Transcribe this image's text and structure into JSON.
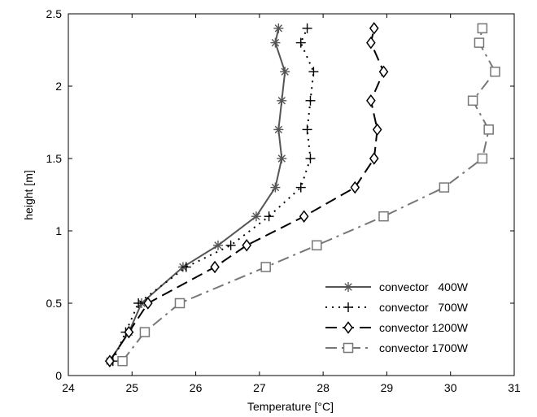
{
  "chart_data": {
    "type": "line",
    "xlabel": "Temperature [°C]",
    "ylabel": "height [m]",
    "xlim": [
      24,
      31
    ],
    "ylim": [
      0,
      2.5
    ],
    "x_ticks": [
      24,
      25,
      26,
      27,
      28,
      29,
      30,
      31
    ],
    "y_ticks": [
      0,
      0.5,
      1,
      1.5,
      2,
      2.5
    ],
    "y_tick_labels": [
      "0",
      "0.5",
      "1",
      "1.5",
      "2",
      "2.5"
    ],
    "grid": false,
    "legend_position": "bottom-right",
    "series": [
      {
        "name": "convector   400W",
        "color": "#555555",
        "line_style": "solid",
        "marker": "star",
        "points": [
          {
            "x": 24.65,
            "y": 0.1
          },
          {
            "x": 24.95,
            "y": 0.3
          },
          {
            "x": 25.15,
            "y": 0.5
          },
          {
            "x": 25.8,
            "y": 0.75
          },
          {
            "x": 26.35,
            "y": 0.9
          },
          {
            "x": 26.95,
            "y": 1.1
          },
          {
            "x": 27.25,
            "y": 1.3
          },
          {
            "x": 27.35,
            "y": 1.5
          },
          {
            "x": 27.3,
            "y": 1.7
          },
          {
            "x": 27.35,
            "y": 1.9
          },
          {
            "x": 27.4,
            "y": 2.1
          },
          {
            "x": 27.25,
            "y": 2.3
          },
          {
            "x": 27.3,
            "y": 2.4
          }
        ]
      },
      {
        "name": "convector   700W",
        "color": "#000000",
        "line_style": "dotted",
        "marker": "plus",
        "points": [
          {
            "x": 24.7,
            "y": 0.1
          },
          {
            "x": 24.9,
            "y": 0.3
          },
          {
            "x": 25.1,
            "y": 0.5
          },
          {
            "x": 25.85,
            "y": 0.75
          },
          {
            "x": 26.55,
            "y": 0.9
          },
          {
            "x": 27.15,
            "y": 1.1
          },
          {
            "x": 27.65,
            "y": 1.3
          },
          {
            "x": 27.8,
            "y": 1.5
          },
          {
            "x": 27.75,
            "y": 1.7
          },
          {
            "x": 27.8,
            "y": 1.9
          },
          {
            "x": 27.85,
            "y": 2.1
          },
          {
            "x": 27.65,
            "y": 2.3
          },
          {
            "x": 27.75,
            "y": 2.4
          }
        ]
      },
      {
        "name": "convector 1200W",
        "color": "#000000",
        "line_style": "dashed",
        "marker": "diamond",
        "points": [
          {
            "x": 24.65,
            "y": 0.1
          },
          {
            "x": 24.95,
            "y": 0.3
          },
          {
            "x": 25.25,
            "y": 0.5
          },
          {
            "x": 26.3,
            "y": 0.75
          },
          {
            "x": 26.8,
            "y": 0.9
          },
          {
            "x": 27.7,
            "y": 1.1
          },
          {
            "x": 28.5,
            "y": 1.3
          },
          {
            "x": 28.8,
            "y": 1.5
          },
          {
            "x": 28.85,
            "y": 1.7
          },
          {
            "x": 28.75,
            "y": 1.9
          },
          {
            "x": 28.95,
            "y": 2.1
          },
          {
            "x": 28.75,
            "y": 2.3
          },
          {
            "x": 28.8,
            "y": 2.4
          }
        ]
      },
      {
        "name": "convector 1700W",
        "color": "#777777",
        "line_style": "dashdot",
        "marker": "square",
        "points": [
          {
            "x": 24.85,
            "y": 0.1
          },
          {
            "x": 25.2,
            "y": 0.3
          },
          {
            "x": 25.75,
            "y": 0.5
          },
          {
            "x": 27.1,
            "y": 0.75
          },
          {
            "x": 27.9,
            "y": 0.9
          },
          {
            "x": 28.95,
            "y": 1.1
          },
          {
            "x": 29.9,
            "y": 1.3
          },
          {
            "x": 30.5,
            "y": 1.5
          },
          {
            "x": 30.6,
            "y": 1.7
          },
          {
            "x": 30.35,
            "y": 1.9
          },
          {
            "x": 30.7,
            "y": 2.1
          },
          {
            "x": 30.45,
            "y": 2.3
          },
          {
            "x": 30.5,
            "y": 2.4
          }
        ]
      }
    ]
  }
}
